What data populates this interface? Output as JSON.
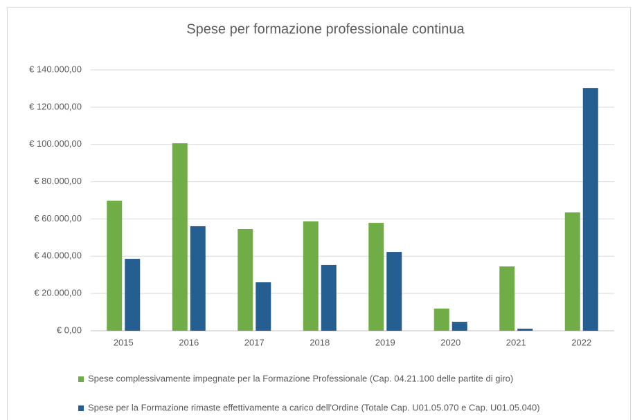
{
  "chart_data": {
    "type": "bar",
    "title": "Spese per formazione professionale continua",
    "categories": [
      "2015",
      "2016",
      "2017",
      "2018",
      "2019",
      "2020",
      "2021",
      "2022"
    ],
    "series": [
      {
        "name": "Spese complessivamente impegnate per la Formazione Professionale (Cap. 04.21.100 delle partite di giro)",
        "color": "#70ad47",
        "values": [
          69800,
          100600,
          54600,
          58700,
          57900,
          11900,
          34500,
          63500
        ]
      },
      {
        "name": "Spese per la Formazione rimaste effettivamente a carico dell'Ordine (Totale Cap. U01.05.070 e Cap. U01.05.040)",
        "color": "#255e91",
        "values": [
          38600,
          56100,
          26000,
          35300,
          42300,
          4800,
          1100,
          130300
        ]
      }
    ],
    "ylim": [
      0,
      140000
    ],
    "yticks": [
      {
        "value": 0,
        "label": "€ 0,00"
      },
      {
        "value": 20000,
        "label": "€ 20.000,00"
      },
      {
        "value": 40000,
        "label": "€ 40.000,00"
      },
      {
        "value": 60000,
        "label": "€ 60.000,00"
      },
      {
        "value": 80000,
        "label": "€ 80.000,00"
      },
      {
        "value": 100000,
        "label": "€ 100.000,00"
      },
      {
        "value": 120000,
        "label": "€ 120.000,00"
      },
      {
        "value": 140000,
        "label": "€ 140.000,00"
      }
    ],
    "grid": true,
    "legend": "bottom"
  }
}
